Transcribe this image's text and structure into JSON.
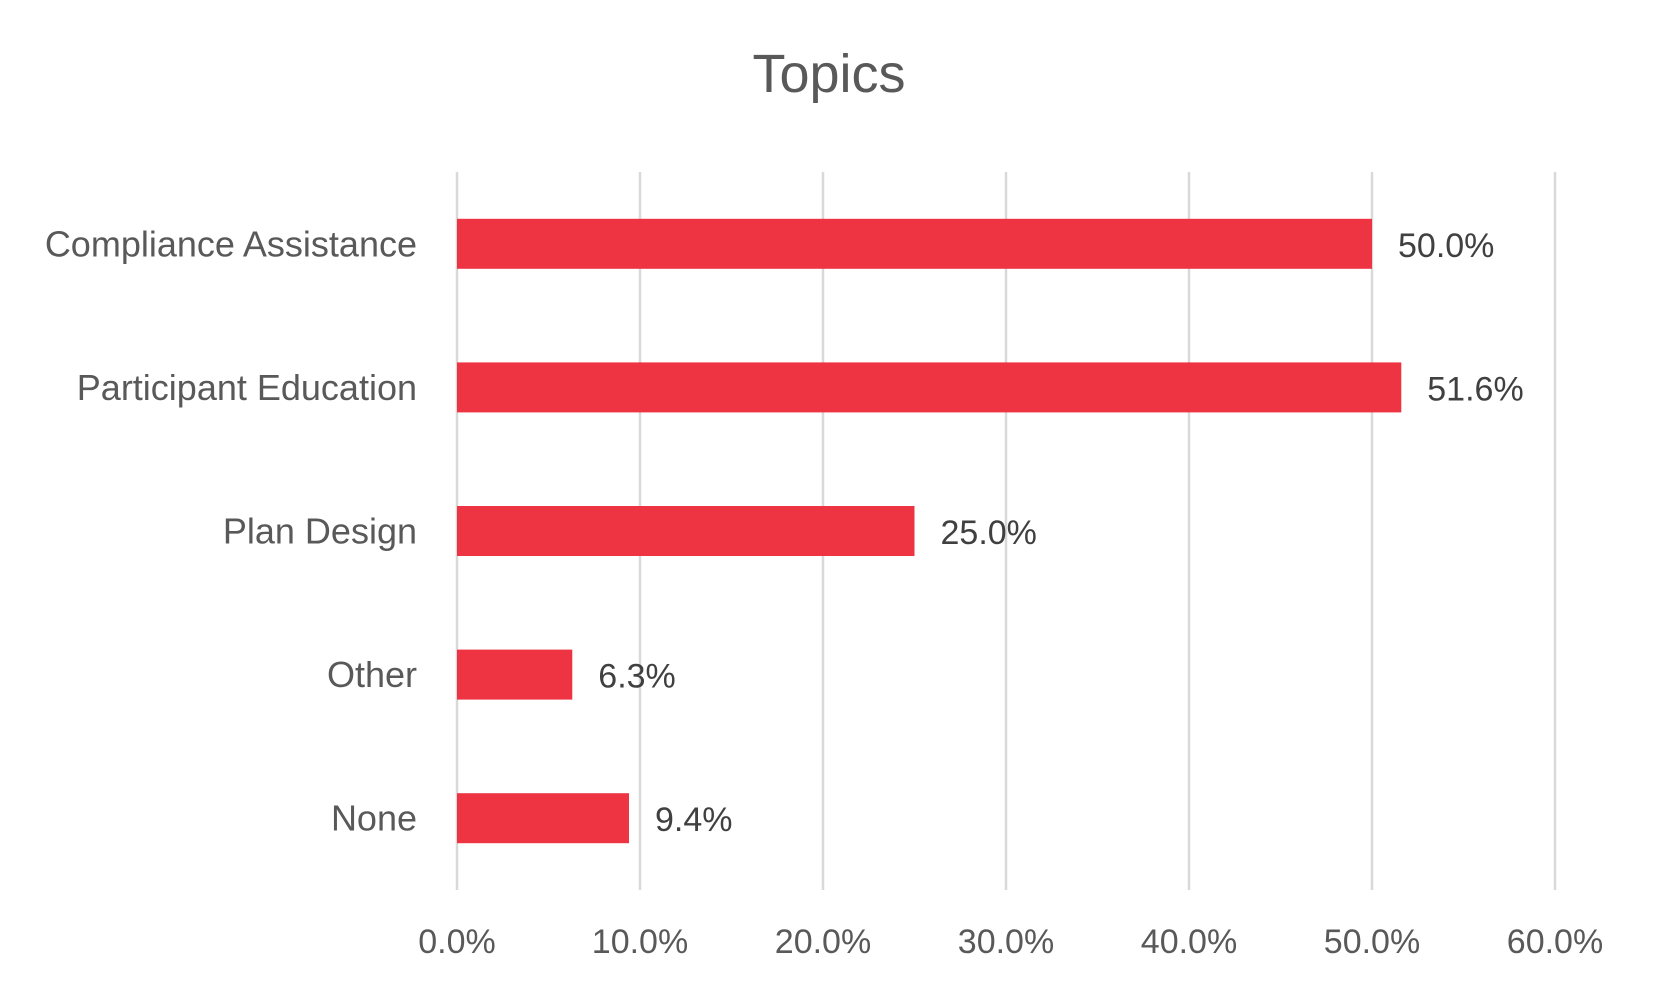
{
  "chart_data": {
    "type": "bar",
    "orientation": "horizontal",
    "title": "Topics",
    "categories": [
      "Compliance Assistance",
      "Participant Education",
      "Plan Design",
      "Other",
      "None"
    ],
    "values": [
      50.0,
      51.6,
      25.0,
      6.3,
      9.4
    ],
    "data_labels": [
      "50.0%",
      "51.6%",
      "25.0%",
      "6.3%",
      "9.4%"
    ],
    "x_ticks": [
      "0.0%",
      "10.0%",
      "20.0%",
      "30.0%",
      "40.0%",
      "50.0%",
      "60.0%"
    ],
    "xlim": [
      0,
      60
    ],
    "xlabel": "",
    "ylabel": "",
    "grid": "vertical",
    "legend": "none",
    "bar_color": "#EE3443"
  }
}
